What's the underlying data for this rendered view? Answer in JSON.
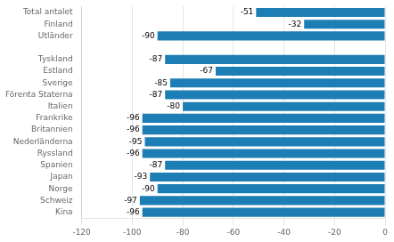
{
  "chart_data": {
    "type": "bar",
    "orientation": "horizontal",
    "categories": [
      "Total antalet",
      "Finland",
      "Utländer",
      null,
      "Tyskland",
      "Estland",
      "Sverige",
      "Förenta Staterna",
      "Italien",
      "Frankrike",
      "Britannien",
      "Nederländerna",
      "Ryssland",
      "Spanien",
      "Japan",
      "Norge",
      "Schweiz",
      "Kina"
    ],
    "values": [
      -51,
      -32,
      -90,
      null,
      -87,
      -67,
      -85,
      -87,
      -80,
      -96,
      -96,
      -95,
      -96,
      -87,
      -93,
      -90,
      -97,
      -96
    ],
    "color": "#1d7db5",
    "xlim": [
      -120,
      0
    ],
    "xticks": [
      -120,
      -100,
      -80,
      -60,
      -40,
      -20,
      0
    ],
    "grid": true,
    "data_labels": true
  }
}
